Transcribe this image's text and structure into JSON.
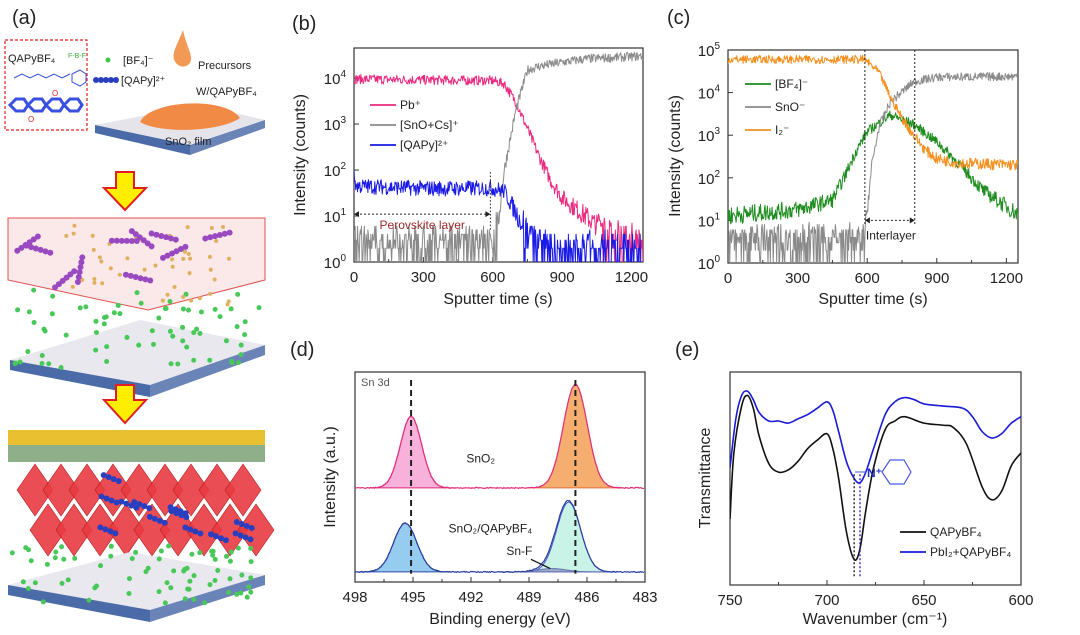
{
  "panel_labels": [
    "(a)",
    "(b)",
    "(c)",
    "(d)",
    "(e)"
  ],
  "schematic": {
    "molecule_label": "QAPyBF₄",
    "bf4_label": "[BF₄]⁻",
    "qapy_label": "[QAPy]²⁺",
    "precursors_label": "Precursors",
    "with_label": "W/QAPyBF₄",
    "film_label": "SnO₂ film",
    "colors": {
      "bf4": "#3ec84a",
      "qapy": "#2a3fc0",
      "droplet": "#f29a55",
      "arrow": "#ffee00",
      "arrow_outline": "#e02020",
      "perovskite": "#e8303a",
      "electrode": "#e8c030",
      "htl": "#8fae8a",
      "substrate": "#4a6aa8"
    }
  },
  "chart_data": [
    {
      "panel": "(b)",
      "type": "line",
      "xlabel": "Sputter time (s)",
      "ylabel": "Intensity (counts)",
      "xlim": [
        0,
        1250
      ],
      "ylim": [
        1,
        45000
      ],
      "yscale": "log",
      "xticks": [
        0,
        300,
        600,
        900,
        1200
      ],
      "yticks_exp": [
        0,
        1,
        2,
        3,
        4
      ],
      "legend_position": "center-left",
      "series": [
        {
          "name": "Pb⁺",
          "color": "#ea2a7e",
          "points": [
            [
              0,
              9500
            ],
            [
              300,
              9100
            ],
            [
              600,
              8800
            ],
            [
              650,
              7500
            ],
            [
              700,
              3000
            ],
            [
              750,
              800
            ],
            [
              800,
              200
            ],
            [
              850,
              60
            ],
            [
              900,
              25
            ],
            [
              1000,
              10
            ],
            [
              1100,
              4
            ],
            [
              1250,
              2
            ]
          ]
        },
        {
          "name": "[SnO+Cs]⁺",
          "color": "#8a8a8a",
          "points": [
            [
              0,
              2
            ],
            [
              595,
              2
            ],
            [
              610,
              4
            ],
            [
              625,
              8
            ],
            [
              650,
              100
            ],
            [
              700,
              2000
            ],
            [
              750,
              15000
            ],
            [
              800,
              18000
            ],
            [
              900,
              22000
            ],
            [
              1000,
              26000
            ],
            [
              1250,
              30000
            ]
          ]
        },
        {
          "name": "[QAPy]²⁺",
          "color": "#1a1ae6",
          "points": [
            [
              0,
              70
            ],
            [
              10,
              45
            ],
            [
              300,
              40
            ],
            [
              600,
              40
            ],
            [
              650,
              35
            ],
            [
              700,
              12
            ],
            [
              750,
              4
            ],
            [
              800,
              2
            ],
            [
              850,
              1.2
            ],
            [
              1250,
              1.2
            ]
          ]
        }
      ],
      "annotations": [
        {
          "text": "Perovskite layer",
          "x_from": 0,
          "x_to": 590,
          "y": 11,
          "color": "#9a2a2a"
        }
      ]
    },
    {
      "panel": "(c)",
      "type": "line",
      "xlabel": "Sputter time (s)",
      "ylabel": "Intensity (counts)",
      "xlim": [
        0,
        1250
      ],
      "ylim": [
        1,
        100000
      ],
      "yscale": "log",
      "xticks": [
        0,
        300,
        600,
        900,
        1200
      ],
      "yticks_exp": [
        0,
        1,
        2,
        3,
        4,
        5
      ],
      "legend_position": "upper-left",
      "series": [
        {
          "name": "[BF₄]⁻",
          "color": "#1e8c1e",
          "points": [
            [
              0,
              13
            ],
            [
              300,
              18
            ],
            [
              450,
              30
            ],
            [
              500,
              100
            ],
            [
              550,
              400
            ],
            [
              600,
              1200
            ],
            [
              700,
              3000
            ],
            [
              800,
              1800
            ],
            [
              900,
              700
            ],
            [
              1000,
              200
            ],
            [
              1100,
              50
            ],
            [
              1250,
              14
            ]
          ]
        },
        {
          "name": "SnO⁻",
          "color": "#8a8a8a",
          "points": [
            [
              0,
              3
            ],
            [
              588,
              3
            ],
            [
              595,
              10
            ],
            [
              620,
              200
            ],
            [
              650,
              1500
            ],
            [
              700,
              6000
            ],
            [
              800,
              18000
            ],
            [
              900,
              23000
            ],
            [
              1250,
              24000
            ]
          ]
        },
        {
          "name": "I₂⁻",
          "color": "#f5901e",
          "points": [
            [
              0,
              60000
            ],
            [
              590,
              60000
            ],
            [
              650,
              30000
            ],
            [
              700,
              8000
            ],
            [
              750,
              2500
            ],
            [
              800,
              1000
            ],
            [
              850,
              450
            ],
            [
              900,
              280
            ],
            [
              1000,
              220
            ],
            [
              1250,
              200
            ]
          ]
        }
      ],
      "annotations": [
        {
          "text": "Interlayer",
          "x_from": 590,
          "x_to": 805,
          "y": 10,
          "color": "#222222"
        }
      ]
    },
    {
      "panel": "(d)",
      "type": "area",
      "title": "Sn 3d",
      "xlabel": "Binding energy (eV)",
      "ylabel": "Intensity (a.u.)",
      "xlim": [
        498,
        483
      ],
      "xticks": [
        498,
        495,
        492,
        489,
        486,
        483
      ],
      "ylim": [
        -0.12,
        2.38
      ],
      "series": [
        {
          "name": "SnO₂",
          "offset": 1.0,
          "line_color": "#e0307a",
          "peaks": [
            {
              "center": 495.1,
              "height": 0.85,
              "sigma": 0.55,
              "fill": "#f7a8d6",
              "stroke": "#e0287a"
            },
            {
              "center": 486.6,
              "height": 1.23,
              "sigma": 0.62,
              "fill": "#f5a460",
              "stroke": "#e8703a"
            }
          ]
        },
        {
          "name": "SnO₂/QAPyBF₄",
          "offset": 0.0,
          "line_color": "#2b3e9c",
          "peaks": [
            {
              "center": 495.4,
              "height": 0.58,
              "sigma": 0.6,
              "fill": "#8cc6f0",
              "stroke": "#2b4aa8"
            },
            {
              "center": 486.95,
              "height": 0.83,
              "sigma": 0.62,
              "fill": "#c4f2e4",
              "stroke": "#4a5ad0"
            },
            {
              "center": 487.8,
              "height": 0.04,
              "sigma": 0.7,
              "fill": "#9aa6c8",
              "stroke": "#6070b0"
            }
          ]
        }
      ],
      "reference_lines": [
        495.1,
        486.6
      ],
      "annotations": [
        {
          "text": "Sn-F",
          "x": 487.8
        }
      ]
    },
    {
      "panel": "(e)",
      "type": "line",
      "xlabel": "Wavenumber (cm⁻¹)",
      "ylabel": "Transmittance",
      "xlim": [
        750,
        600
      ],
      "xticks": [
        750,
        700,
        650,
        600
      ],
      "ylim": [
        0,
        1
      ],
      "legend_position": "lower-right",
      "series": [
        {
          "name": "QAPyBF₄",
          "color": "#111111",
          "points": [
            [
              750,
              0.31
            ],
            [
              748,
              0.62
            ],
            [
              744,
              0.84
            ],
            [
              741,
              0.89
            ],
            [
              738,
              0.83
            ],
            [
              735,
              0.7
            ],
            [
              730,
              0.57
            ],
            [
              725,
              0.53
            ],
            [
              720,
              0.54
            ],
            [
              715,
              0.58
            ],
            [
              710,
              0.64
            ],
            [
              705,
              0.68
            ],
            [
              700,
              0.71
            ],
            [
              697,
              0.64
            ],
            [
              694,
              0.5
            ],
            [
              690,
              0.25
            ],
            [
              686,
              0.12
            ],
            [
              683,
              0.17
            ],
            [
              680,
              0.35
            ],
            [
              676,
              0.55
            ],
            [
              670,
              0.73
            ],
            [
              665,
              0.77
            ],
            [
              660,
              0.79
            ],
            [
              650,
              0.76
            ],
            [
              640,
              0.75
            ],
            [
              635,
              0.74
            ],
            [
              628,
              0.66
            ],
            [
              620,
              0.46
            ],
            [
              615,
              0.4
            ],
            [
              610,
              0.44
            ],
            [
              605,
              0.56
            ],
            [
              600,
              0.62
            ]
          ]
        },
        {
          "name": "PbI₂+QAPyBF₄",
          "color": "#1a1ad8",
          "points": [
            [
              750,
              0.55
            ],
            [
              747,
              0.78
            ],
            [
              744,
              0.89
            ],
            [
              741,
              0.91
            ],
            [
              738,
              0.87
            ],
            [
              735,
              0.81
            ],
            [
              730,
              0.77
            ],
            [
              725,
              0.77
            ],
            [
              720,
              0.76
            ],
            [
              715,
              0.78
            ],
            [
              710,
              0.8
            ],
            [
              705,
              0.83
            ],
            [
              700,
              0.86
            ],
            [
              697,
              0.82
            ],
            [
              694,
              0.72
            ],
            [
              690,
              0.58
            ],
            [
              686,
              0.5
            ],
            [
              683,
              0.48
            ],
            [
              680,
              0.53
            ],
            [
              676,
              0.64
            ],
            [
              670,
              0.8
            ],
            [
              665,
              0.86
            ],
            [
              660,
              0.88
            ],
            [
              655,
              0.87
            ],
            [
              650,
              0.85
            ],
            [
              640,
              0.84
            ],
            [
              630,
              0.83
            ],
            [
              625,
              0.79
            ],
            [
              620,
              0.72
            ],
            [
              615,
              0.69
            ],
            [
              610,
              0.71
            ],
            [
              605,
              0.76
            ],
            [
              600,
              0.79
            ]
          ]
        }
      ],
      "reference_lines": [
        {
          "x": 686,
          "color": "#111111"
        },
        {
          "x": 683,
          "color": "#1a1ad8"
        }
      ],
      "inset": {
        "text": "N⁺",
        "description_icon": "pyridinium-structure"
      }
    }
  ]
}
